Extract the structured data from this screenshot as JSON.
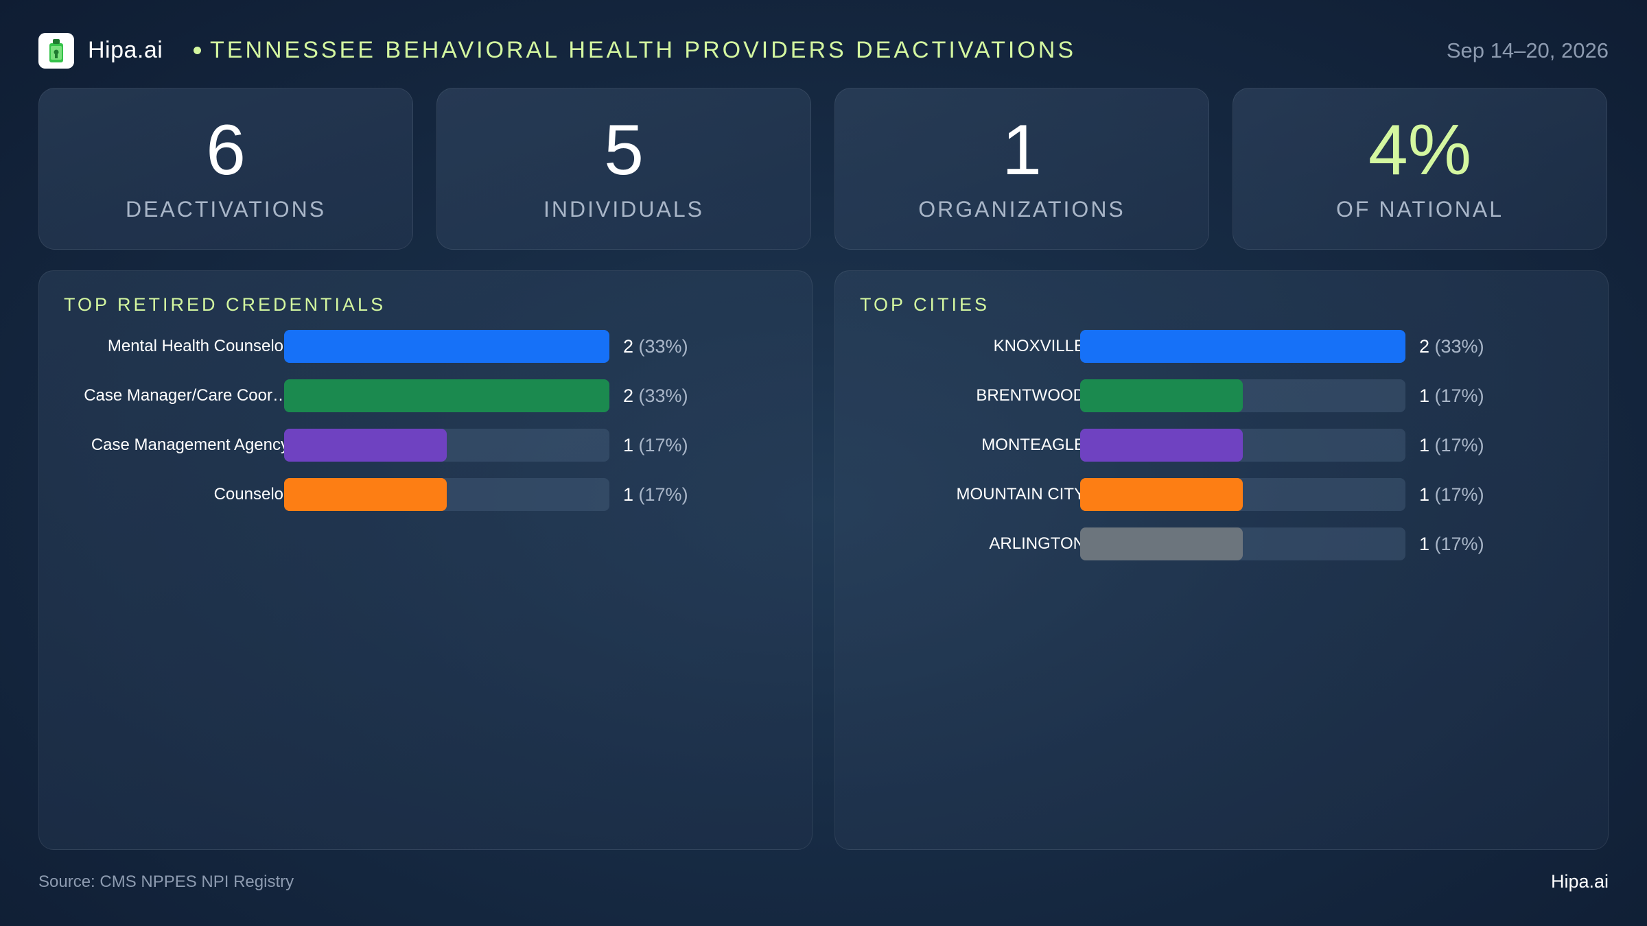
{
  "header": {
    "brand": "Hipa.ai",
    "title": "TENNESSEE BEHAVIORAL HEALTH PROVIDERS DEACTIVATIONS",
    "date_range": "Sep 14–20, 2026"
  },
  "stats": [
    {
      "value": "6",
      "label": "DEACTIVATIONS"
    },
    {
      "value": "5",
      "label": "INDIVIDUALS"
    },
    {
      "value": "1",
      "label": "ORGANIZATIONS"
    },
    {
      "value": "4%",
      "label": "OF NATIONAL"
    }
  ],
  "colors": {
    "accent": "#d4f7a0",
    "blue": "#1671f8",
    "green": "#1b8a4f",
    "purple": "#6f42c1",
    "orange": "#fd7e14",
    "gray": "#6c757d"
  },
  "chart_data": [
    {
      "type": "bar",
      "orientation": "horizontal",
      "title": "TOP RETIRED CREDENTIALS",
      "categories": [
        "Mental Health Counselor",
        "Case Manager/Care Coor…",
        "Case Management Agency",
        "Counselor"
      ],
      "values": [
        2,
        2,
        1,
        1
      ],
      "percents": [
        "33%",
        "33%",
        "17%",
        "17%"
      ],
      "value_labels": [
        "2",
        "2",
        "1",
        "1"
      ],
      "pct_labels": [
        "(33%)",
        "(33%)",
        "(17%)",
        "(17%)"
      ],
      "bar_colors": [
        "#1671f8",
        "#1b8a4f",
        "#6f42c1",
        "#fd7e14"
      ],
      "xlim": [
        0,
        2
      ]
    },
    {
      "type": "bar",
      "orientation": "horizontal",
      "title": "TOP CITIES",
      "categories": [
        "KNOXVILLE",
        "BRENTWOOD",
        "MONTEAGLE",
        "MOUNTAIN CITY",
        "ARLINGTON"
      ],
      "values": [
        2,
        1,
        1,
        1,
        1
      ],
      "percents": [
        "33%",
        "17%",
        "17%",
        "17%",
        "17%"
      ],
      "value_labels": [
        "2",
        "1",
        "1",
        "1",
        "1"
      ],
      "pct_labels": [
        "(33%)",
        "(17%)",
        "(17%)",
        "(17%)",
        "(17%)"
      ],
      "bar_colors": [
        "#1671f8",
        "#1b8a4f",
        "#6f42c1",
        "#fd7e14",
        "#6c757d"
      ],
      "xlim": [
        0,
        2
      ]
    }
  ],
  "footer": {
    "source": "Source: CMS NPPES NPI Registry",
    "brand": "Hipa.ai"
  }
}
